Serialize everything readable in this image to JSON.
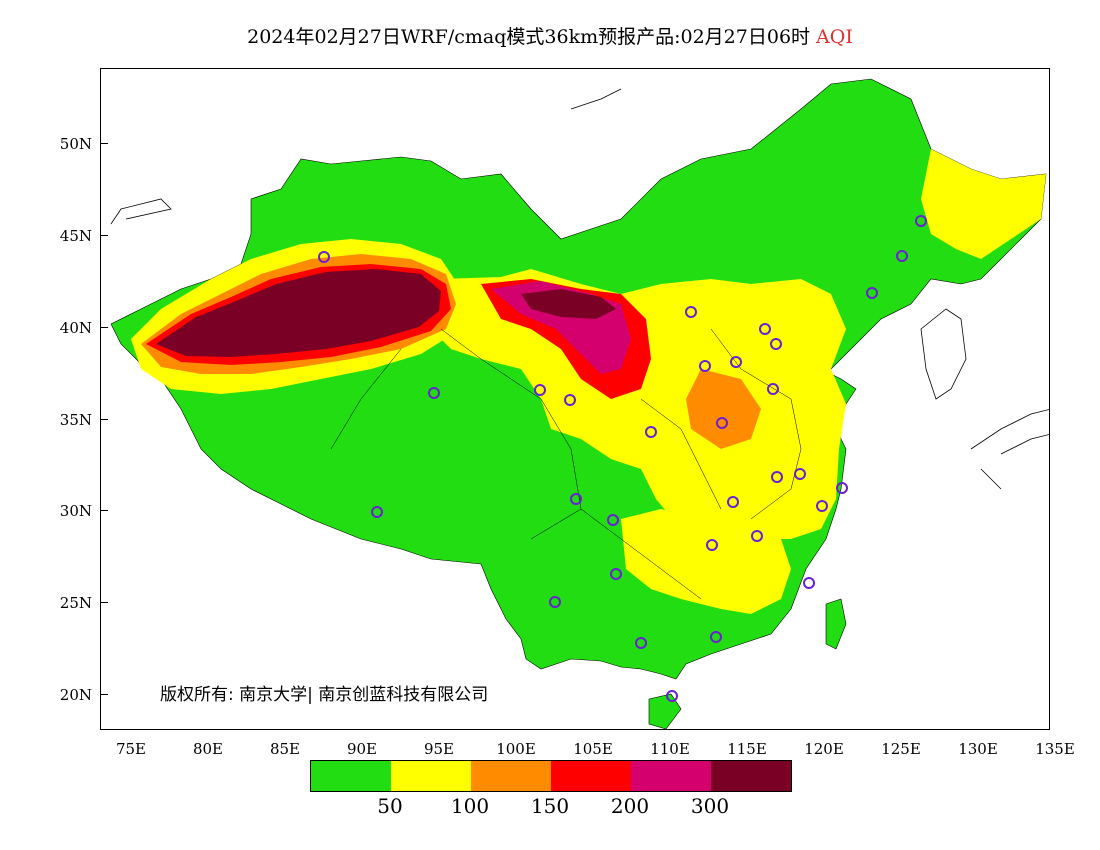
{
  "title": {
    "text": "2024年02月27日WRF/cmaq模式36km预报产品:02月27日06时",
    "variable": "AQI",
    "variable_color": "#e03030"
  },
  "axes": {
    "x_ticks": [
      "75E",
      "80E",
      "85E",
      "90E",
      "95E",
      "100E",
      "105E",
      "110E",
      "115E",
      "120E",
      "125E",
      "130E",
      "135E"
    ],
    "y_ticks": [
      "50N",
      "45N",
      "40N",
      "35N",
      "30N",
      "25N",
      "20N"
    ]
  },
  "legend": {
    "colors": [
      "#22dd11",
      "#ffff00",
      "#ff8c00",
      "#ff0000",
      "#d4006e",
      "#7a0026"
    ],
    "labels": [
      "50",
      "100",
      "150",
      "200",
      "300"
    ]
  },
  "copyright": "版权所有: 南京大学| 南京创蓝科技有限公司"
}
